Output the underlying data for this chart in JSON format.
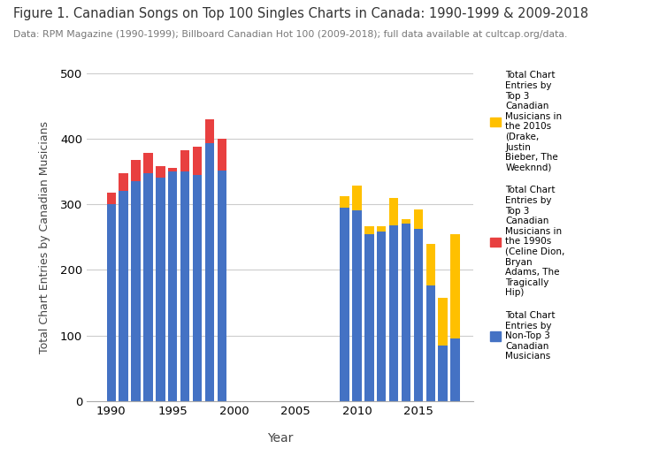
{
  "title": "Figure 1. Canadian Songs on Top 100 Singles Charts in Canada: 1990-1999 & 2009-2018",
  "subtitle": "Data: RPM Magazine (1990-1999); Billboard Canadian Hot 100 (2009-2018); full data available at cultcap.org/data.",
  "ylabel": "Total Chart Entries by Canadian Musicians",
  "xlabel": "Year",
  "years_1990s": [
    1990,
    1991,
    1992,
    1993,
    1994,
    1995,
    1996,
    1997,
    1998,
    1999
  ],
  "blue_1990s": [
    300,
    320,
    335,
    348,
    340,
    350,
    350,
    345,
    393,
    352
  ],
  "red_1990s": [
    18,
    28,
    32,
    30,
    18,
    5,
    32,
    43,
    37,
    48
  ],
  "years_2010s": [
    2009,
    2010,
    2011,
    2012,
    2013,
    2014,
    2015,
    2016,
    2017,
    2018
  ],
  "blue_2010s": [
    295,
    291,
    255,
    258,
    268,
    270,
    263,
    177,
    85,
    95
  ],
  "yellow_2010s": [
    17,
    38,
    12,
    9,
    42,
    8,
    29,
    62,
    73,
    160
  ],
  "blue_color": "#4472C4",
  "red_color": "#E84040",
  "yellow_color": "#FFC000",
  "ylim": [
    0,
    500
  ],
  "background_color": "#FFFFFF",
  "grid_color": "#CCCCCC",
  "legend_label_yellow": "Total Chart\nEntries by\nTop 3\nCanadian\nMusicians in\nthe 2010s\n(Drake,\nJustin\nBieber, The\nWeeknnd)",
  "legend_label_red": "Total Chart\nEntries by\nTop 3\nCanadian\nMusicians in\nthe 1990s\n(Celine Dion,\nBryan\nAdams, The\nTragically\nHip)",
  "legend_label_blue": "Total Chart\nEntries by\nNon-Top 3\nCanadian\nMusicians"
}
